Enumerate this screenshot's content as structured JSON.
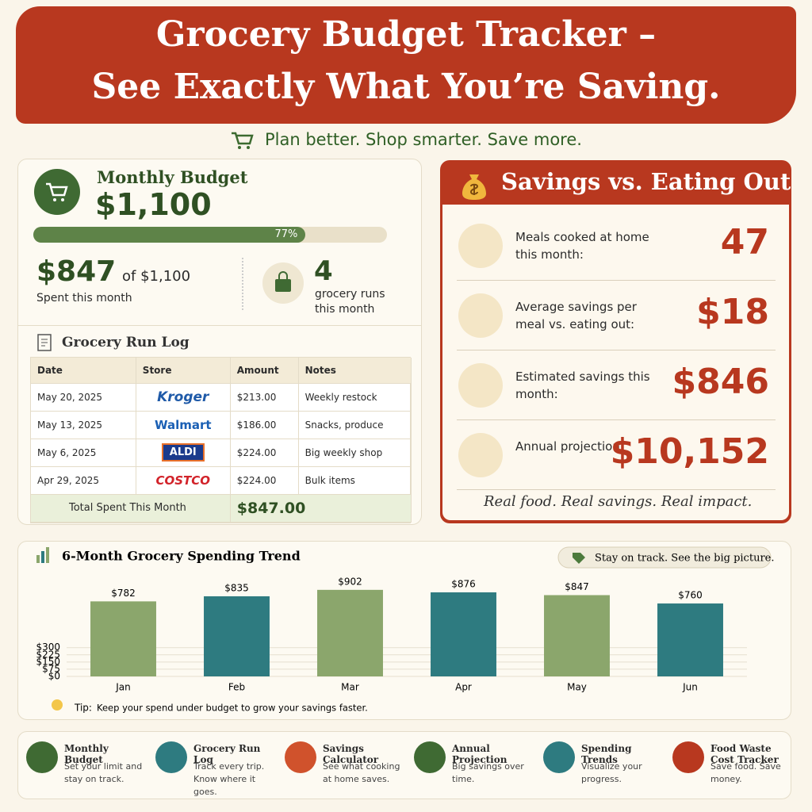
{
  "header": {
    "title_line1": "Grocery Budget Tracker –",
    "title_line2": "See Exactly What You’re Saving.",
    "tagline": "Plan better. Shop smarter. Save more."
  },
  "budget": {
    "label": "Monthly Budget",
    "amount": "$1,100",
    "progress": {
      "value": 77,
      "label": "77%"
    },
    "spent": "$847",
    "spent_of": "of $1,100",
    "spent_label": "Spent this month",
    "runs": "4",
    "runs_label": "grocery runs this month"
  },
  "log": {
    "title": "Grocery Run Log",
    "columns": [
      "Date",
      "Store",
      "Amount",
      "Notes"
    ],
    "rows": [
      [
        "May 20, 2025",
        "Kroger",
        "$213.00",
        "Weekly restock"
      ],
      [
        "May 13, 2025",
        "Walmart",
        "$186.00",
        "Snacks, produce"
      ],
      [
        "May 6, 2025",
        "ALDI",
        "$224.00",
        "Big weekly shop"
      ],
      [
        "Apr 29, 2025",
        "COSTCO",
        "$224.00",
        "Bulk items"
      ]
    ],
    "total_label": "Total Spent This Month",
    "total": "$847.00"
  },
  "savings": {
    "title": "Savings vs. Eating Out",
    "rows": [
      {
        "label": "Meals cooked at home this month:",
        "value": "47"
      },
      {
        "label": "Average savings per meal vs. eating out:",
        "value": "$18"
      },
      {
        "label": "Estimated savings this month:",
        "value": "$846"
      },
      {
        "label": "Annual projection:",
        "value": "$10,152"
      }
    ],
    "footer": "Real food. Real savings. Real impact."
  },
  "chart_data": {
    "type": "bar",
    "title": "6-Month Grocery Spending Trend",
    "badge": "Stay on track. See the big picture.",
    "categories": [
      "Jan",
      "Feb",
      "Mar",
      "Apr",
      "May",
      "Jun"
    ],
    "values": [
      782,
      835,
      902,
      876,
      847,
      760
    ],
    "value_labels": [
      "$782",
      "$835",
      "$902",
      "$876",
      "$847",
      "$760"
    ],
    "colors": [
      "#8ba66c",
      "#2e7b80",
      "#8ba66c",
      "#2e7b80",
      "#8ba66c",
      "#2e7b80"
    ],
    "ylim": [
      0,
      1000
    ],
    "yticks": [
      {
        "value": 0,
        "label": "$0"
      },
      {
        "value": 75,
        "label": "$75"
      },
      {
        "value": 150,
        "label": "$150"
      },
      {
        "value": 225,
        "label": "$225"
      },
      {
        "value": 300,
        "label": "$300"
      }
    ],
    "tip_label": "Tip:",
    "tip": "Keep your spend under budget to grow your savings faster."
  },
  "features": [
    {
      "title": "Monthly Budget",
      "text": "Set your limit and stay on track."
    },
    {
      "title": "Grocery Run Log",
      "text": "Track every trip. Know where it goes."
    },
    {
      "title": "Savings Calculator",
      "text": "See what cooking at home saves."
    },
    {
      "title": "Annual Projection",
      "text": "Big savings over time."
    },
    {
      "title": "Spending Trends",
      "text": "Visualize your progress."
    },
    {
      "title": "Food Waste Cost Tracker",
      "text": "Save food. Save money."
    }
  ]
}
